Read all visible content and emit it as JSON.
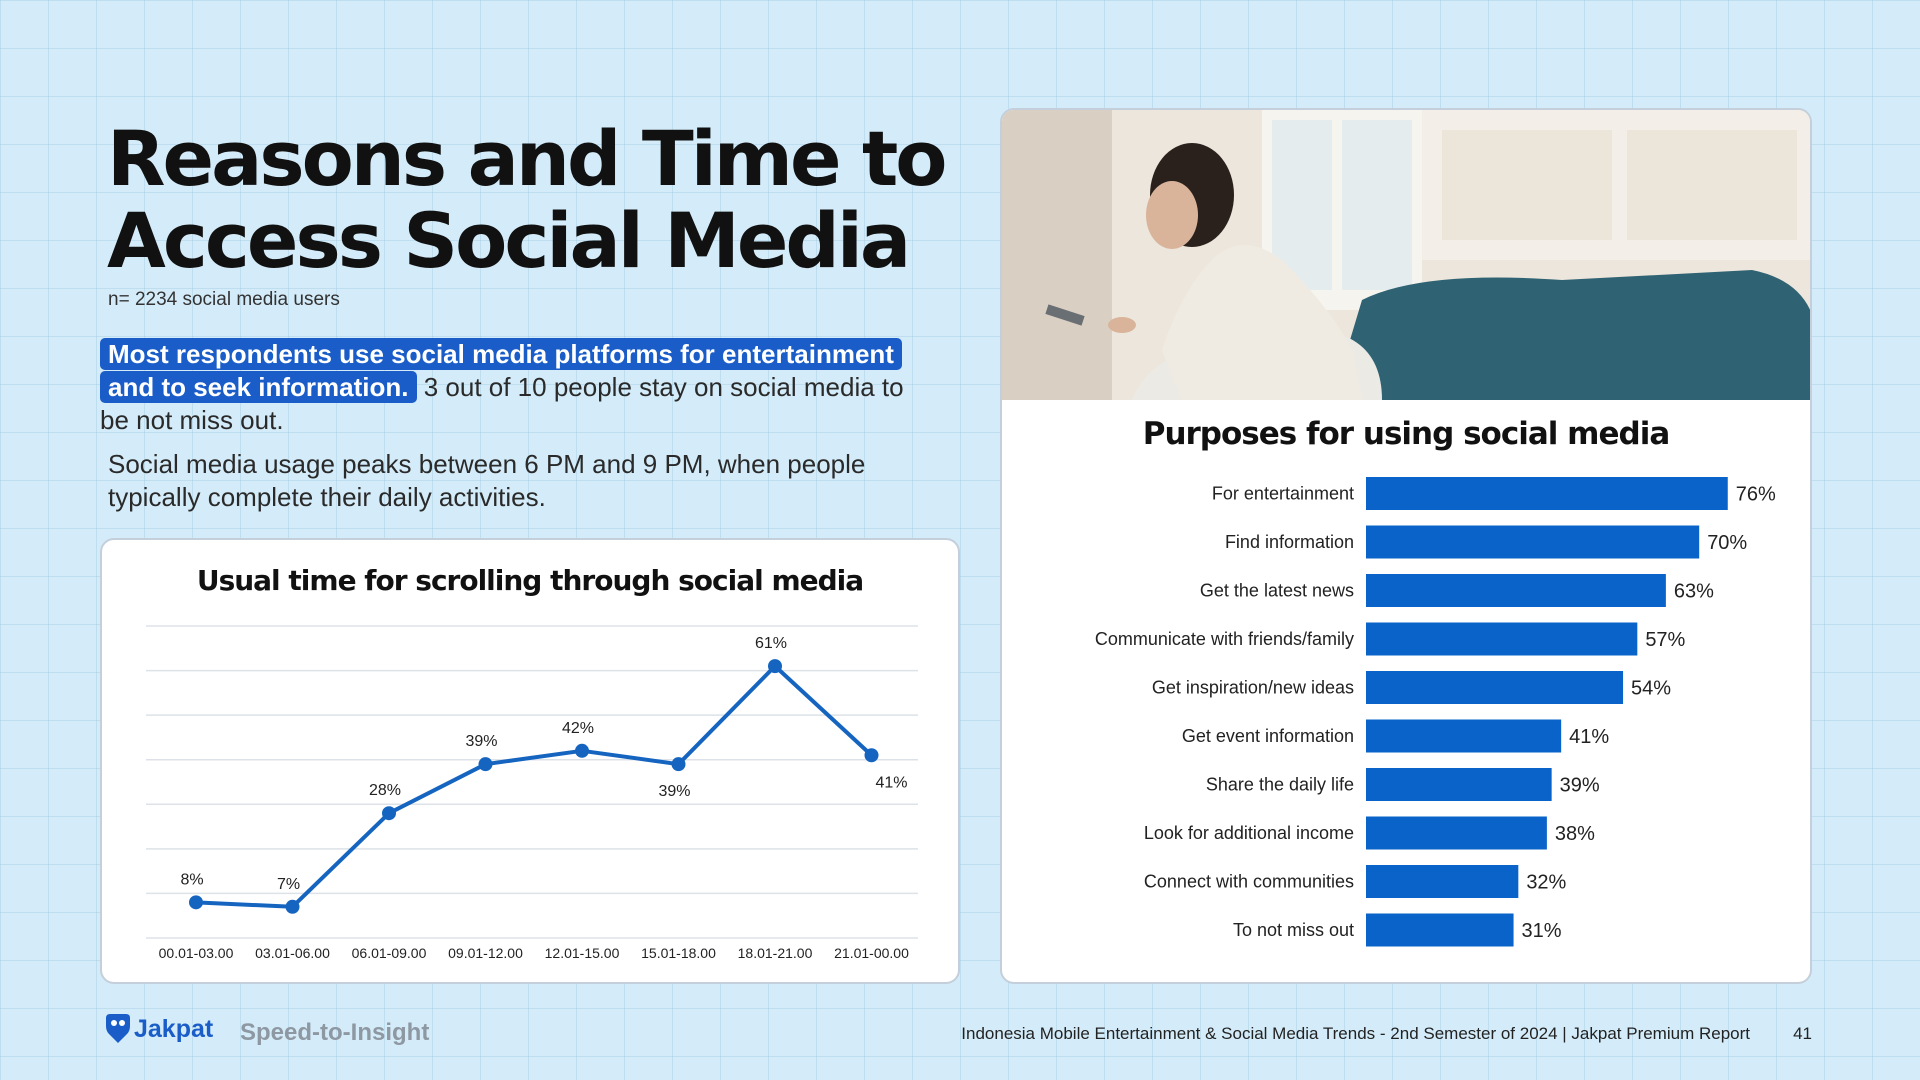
{
  "title_line1": "Reasons and Time to",
  "title_line2": "Access Social Media",
  "sample_note": "n= 2234 social media users",
  "highlight_text": "Most respondents use social media platforms for entertainment and to seek information.",
  "para1_rest": " 3 out of 10 people stay on social media to be not miss out.",
  "para2": "Social media usage peaks between 6 PM and 9 PM, when people typically complete their daily activities.",
  "footer": {
    "brand": "Jakpat",
    "tagline": "Speed-to-Insight",
    "report": "Indonesia Mobile Entertainment & Social Media Trends - 2nd Semester of 2024 | Jakpat Premium Report",
    "page": "41"
  },
  "colors": {
    "accent": "#1565c0",
    "highlight": "#1a5dc8",
    "background": "#d4ecf9"
  },
  "chart_data": [
    {
      "type": "line",
      "title": "Usual time for scrolling through social media",
      "categories": [
        "00.01-03.00",
        "03.01-06.00",
        "06.01-09.00",
        "09.01-12.00",
        "12.01-15.00",
        "15.01-18.00",
        "18.01-21.00",
        "21.01-00.00"
      ],
      "values": [
        8,
        7,
        28,
        39,
        42,
        39,
        61,
        41
      ],
      "labels": [
        "8%",
        "7%",
        "28%",
        "39%",
        "42%",
        "39%",
        "61%",
        "41%"
      ],
      "ylim": [
        0,
        70
      ],
      "grid": true,
      "color": "#1565c0"
    },
    {
      "type": "bar",
      "orientation": "horizontal",
      "title": "Purposes for using social media",
      "categories": [
        "For entertainment",
        "Find information",
        "Get the latest news",
        "Communicate with friends/family",
        "Get inspiration/new ideas",
        "Get event information",
        "Share the daily life",
        "Look for additional income",
        "Connect with communities",
        "To not miss out"
      ],
      "values": [
        76,
        70,
        63,
        57,
        54,
        41,
        39,
        38,
        32,
        31
      ],
      "labels": [
        "76%",
        "70%",
        "63%",
        "57%",
        "54%",
        "41%",
        "39%",
        "38%",
        "32%",
        "31%"
      ],
      "xlim": [
        0,
        100
      ],
      "color": "#0a63c9"
    }
  ]
}
